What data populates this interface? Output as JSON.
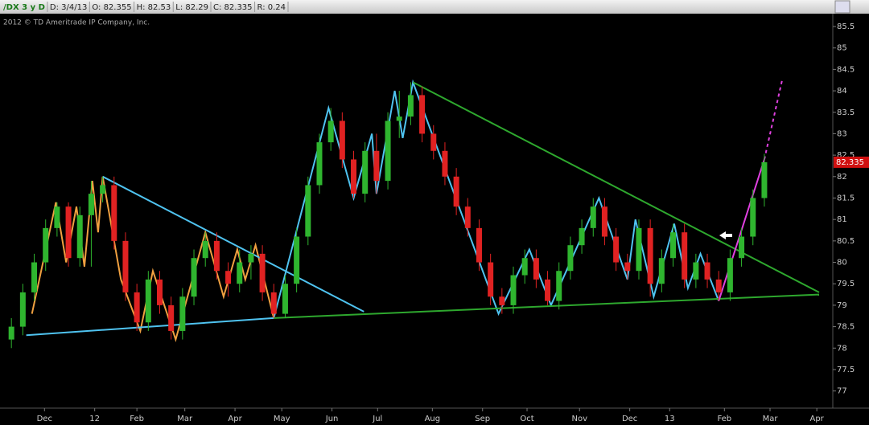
{
  "chart_data": {
    "type": "candlestick",
    "header": [
      "/DX 3 y D",
      "D: 3/4/13",
      "O: 82.355",
      "H: 82.53",
      "L: 82.29",
      "C: 82.335",
      "R: 0.24"
    ],
    "subtitle": "2012 © TD Ameritrade IP Company, Inc.",
    "last_price": 82.335,
    "up_color": "#2fb52f",
    "down_color": "#e02222",
    "xlim": [
      0,
      73
    ],
    "xticks": [
      {
        "value": 3.9,
        "label": "Dec"
      },
      {
        "value": 8.3,
        "label": "12"
      },
      {
        "value": 12.0,
        "label": "Feb"
      },
      {
        "value": 16.2,
        "label": "Mar"
      },
      {
        "value": 20.6,
        "label": "Apr"
      },
      {
        "value": 24.7,
        "label": "May"
      },
      {
        "value": 29.1,
        "label": "Jun"
      },
      {
        "value": 33.1,
        "label": "Jul"
      },
      {
        "value": 37.9,
        "label": "Aug"
      },
      {
        "value": 42.3,
        "label": "Sep"
      },
      {
        "value": 46.2,
        "label": "Oct"
      },
      {
        "value": 50.8,
        "label": "Nov"
      },
      {
        "value": 55.2,
        "label": "Dec"
      },
      {
        "value": 58.7,
        "label": "13"
      },
      {
        "value": 63.5,
        "label": "Feb"
      },
      {
        "value": 67.5,
        "label": "Mar"
      },
      {
        "value": 71.6,
        "label": "Apr"
      }
    ],
    "ylim": [
      76.6,
      85.8
    ],
    "yticks": [
      77,
      77.5,
      78,
      78.5,
      79,
      79.5,
      80,
      80.5,
      81,
      81.5,
      82,
      82.5,
      83,
      83.5,
      84,
      84.5,
      85,
      85.5
    ],
    "x": [
      1,
      2,
      3,
      4,
      5,
      6,
      7,
      8,
      9,
      10,
      11,
      12,
      13,
      14,
      15,
      16,
      17,
      18,
      19,
      20,
      21,
      22,
      23,
      24,
      25,
      26,
      27,
      28,
      29,
      30,
      31,
      32,
      33,
      34,
      35,
      36,
      37,
      38,
      39,
      40,
      41,
      42,
      43,
      44,
      45,
      46,
      47,
      48,
      49,
      50,
      51,
      52,
      53,
      54,
      55,
      56,
      57,
      58,
      59,
      60,
      61,
      62,
      63,
      64,
      65,
      66,
      67
    ],
    "ohlc": [
      [
        78.2,
        78.7,
        78.0,
        78.5
      ],
      [
        78.5,
        79.5,
        78.3,
        79.3
      ],
      [
        79.3,
        80.2,
        79.1,
        80.0
      ],
      [
        80.0,
        81.0,
        79.8,
        80.8
      ],
      [
        80.8,
        81.4,
        80.6,
        81.3
      ],
      [
        81.3,
        81.4,
        79.9,
        80.1
      ],
      [
        80.1,
        81.3,
        79.9,
        81.1
      ],
      [
        81.1,
        81.9,
        79.9,
        81.6
      ],
      [
        81.6,
        82.0,
        81.4,
        81.8
      ],
      [
        81.8,
        82.0,
        80.3,
        80.5
      ],
      [
        80.5,
        80.7,
        79.1,
        79.3
      ],
      [
        79.3,
        79.5,
        78.4,
        78.6
      ],
      [
        78.6,
        79.8,
        78.4,
        79.6
      ],
      [
        79.6,
        79.8,
        78.8,
        79.0
      ],
      [
        79.0,
        79.2,
        78.2,
        78.4
      ],
      [
        78.4,
        79.4,
        78.2,
        79.2
      ],
      [
        79.2,
        80.3,
        79.0,
        80.1
      ],
      [
        80.1,
        80.7,
        79.9,
        80.5
      ],
      [
        80.5,
        80.7,
        79.6,
        79.8
      ],
      [
        79.8,
        80.0,
        79.2,
        79.5
      ],
      [
        79.5,
        80.3,
        79.3,
        80.0
      ],
      [
        80.0,
        80.4,
        79.6,
        80.2
      ],
      [
        80.2,
        80.4,
        79.1,
        79.3
      ],
      [
        79.3,
        79.5,
        78.7,
        78.8
      ],
      [
        78.8,
        79.7,
        78.7,
        79.5
      ],
      [
        79.5,
        80.8,
        79.3,
        80.6
      ],
      [
        80.6,
        82.0,
        80.4,
        81.8
      ],
      [
        81.8,
        83.0,
        81.6,
        82.8
      ],
      [
        82.8,
        83.6,
        82.6,
        83.3
      ],
      [
        83.3,
        83.5,
        82.2,
        82.4
      ],
      [
        82.4,
        82.6,
        81.5,
        81.6
      ],
      [
        81.6,
        82.8,
        81.4,
        82.6
      ],
      [
        82.6,
        83.0,
        81.6,
        81.9
      ],
      [
        81.9,
        83.5,
        81.7,
        83.3
      ],
      [
        83.3,
        84.0,
        82.9,
        83.4
      ],
      [
        83.4,
        84.2,
        83.2,
        83.9
      ],
      [
        83.9,
        84.1,
        82.8,
        83.0
      ],
      [
        83.0,
        83.2,
        82.4,
        82.6
      ],
      [
        82.6,
        82.8,
        81.8,
        82.0
      ],
      [
        82.0,
        82.2,
        81.1,
        81.3
      ],
      [
        81.3,
        81.5,
        80.6,
        80.8
      ],
      [
        80.8,
        81.0,
        79.8,
        80.0
      ],
      [
        80.0,
        80.2,
        79.0,
        79.2
      ],
      [
        79.2,
        79.4,
        78.8,
        79.0
      ],
      [
        79.0,
        79.9,
        78.8,
        79.7
      ],
      [
        79.7,
        80.3,
        79.5,
        80.1
      ],
      [
        80.1,
        80.3,
        79.4,
        79.6
      ],
      [
        79.6,
        79.8,
        79.0,
        79.1
      ],
      [
        79.1,
        80.0,
        78.9,
        79.8
      ],
      [
        79.8,
        80.6,
        79.6,
        80.4
      ],
      [
        80.4,
        81.0,
        80.2,
        80.8
      ],
      [
        80.8,
        81.5,
        80.6,
        81.3
      ],
      [
        81.3,
        81.5,
        80.4,
        80.6
      ],
      [
        80.6,
        80.8,
        79.8,
        80.0
      ],
      [
        80.0,
        80.2,
        79.6,
        79.8
      ],
      [
        79.8,
        81.0,
        79.6,
        80.8
      ],
      [
        80.8,
        81.0,
        79.2,
        79.5
      ],
      [
        79.5,
        80.3,
        79.3,
        80.1
      ],
      [
        80.1,
        80.9,
        79.9,
        80.7
      ],
      [
        80.7,
        80.9,
        79.4,
        79.6
      ],
      [
        79.6,
        80.2,
        79.4,
        80.0
      ],
      [
        80.0,
        80.2,
        79.4,
        79.6
      ],
      [
        79.6,
        79.8,
        79.1,
        79.3
      ],
      [
        79.3,
        80.3,
        79.1,
        80.1
      ],
      [
        80.1,
        80.8,
        79.9,
        80.6
      ],
      [
        80.6,
        81.7,
        80.4,
        81.5
      ],
      [
        81.5,
        82.53,
        81.3,
        82.335
      ]
    ],
    "overlays": [
      {
        "color": "#f0a040",
        "dash": false,
        "x": [
          2.8,
          4.9,
          5.8,
          6.7,
          7.4,
          8.1,
          8.6,
          9.0,
          10.6,
          12.3,
          13.4,
          15.4,
          18.0,
          19.6,
          20.8,
          21.5,
          22.4,
          24.0
        ],
        "y": [
          78.8,
          81.4,
          80.0,
          81.3,
          79.9,
          81.9,
          80.7,
          82.0,
          79.6,
          78.4,
          79.8,
          78.2,
          80.7,
          79.2,
          80.3,
          79.6,
          80.4,
          78.7
        ]
      },
      {
        "color": "#4fc3f0",
        "dash": false,
        "x": [
          24.0,
          28.8,
          31.0,
          32.6,
          33.0,
          34.6,
          35.3,
          36.2,
          43.7,
          46.4,
          48.3,
          52.5,
          55.0,
          55.7,
          57.3,
          59.1,
          60.3,
          61.4,
          63.0
        ],
        "y": [
          78.7,
          83.6,
          81.5,
          83.0,
          81.6,
          84.0,
          82.9,
          84.2,
          78.8,
          80.3,
          79.0,
          81.5,
          79.6,
          81.0,
          79.2,
          80.9,
          79.4,
          80.2,
          79.1
        ]
      },
      {
        "color": "#4fc3f0",
        "dash": false,
        "x": [
          2.3,
          24.0
        ],
        "y": [
          78.3,
          78.7
        ]
      },
      {
        "color": "#4fc3f0",
        "dash": false,
        "x": [
          9.0,
          31.9
        ],
        "y": [
          82.0,
          78.85
        ]
      },
      {
        "color": "#2ea82e",
        "dash": false,
        "x": [
          36.2,
          71.8
        ],
        "y": [
          84.2,
          79.3
        ]
      },
      {
        "color": "#2ea82e",
        "dash": false,
        "x": [
          24.0,
          71.8
        ],
        "y": [
          78.7,
          79.25
        ]
      },
      {
        "color": "#e040e0",
        "dash": false,
        "x": [
          63.0,
          67.0
        ],
        "y": [
          79.1,
          82.4
        ]
      },
      {
        "color": "#e040e0",
        "dash": true,
        "x": [
          67.0,
          68.6
        ],
        "y": [
          82.4,
          84.3
        ]
      }
    ]
  }
}
